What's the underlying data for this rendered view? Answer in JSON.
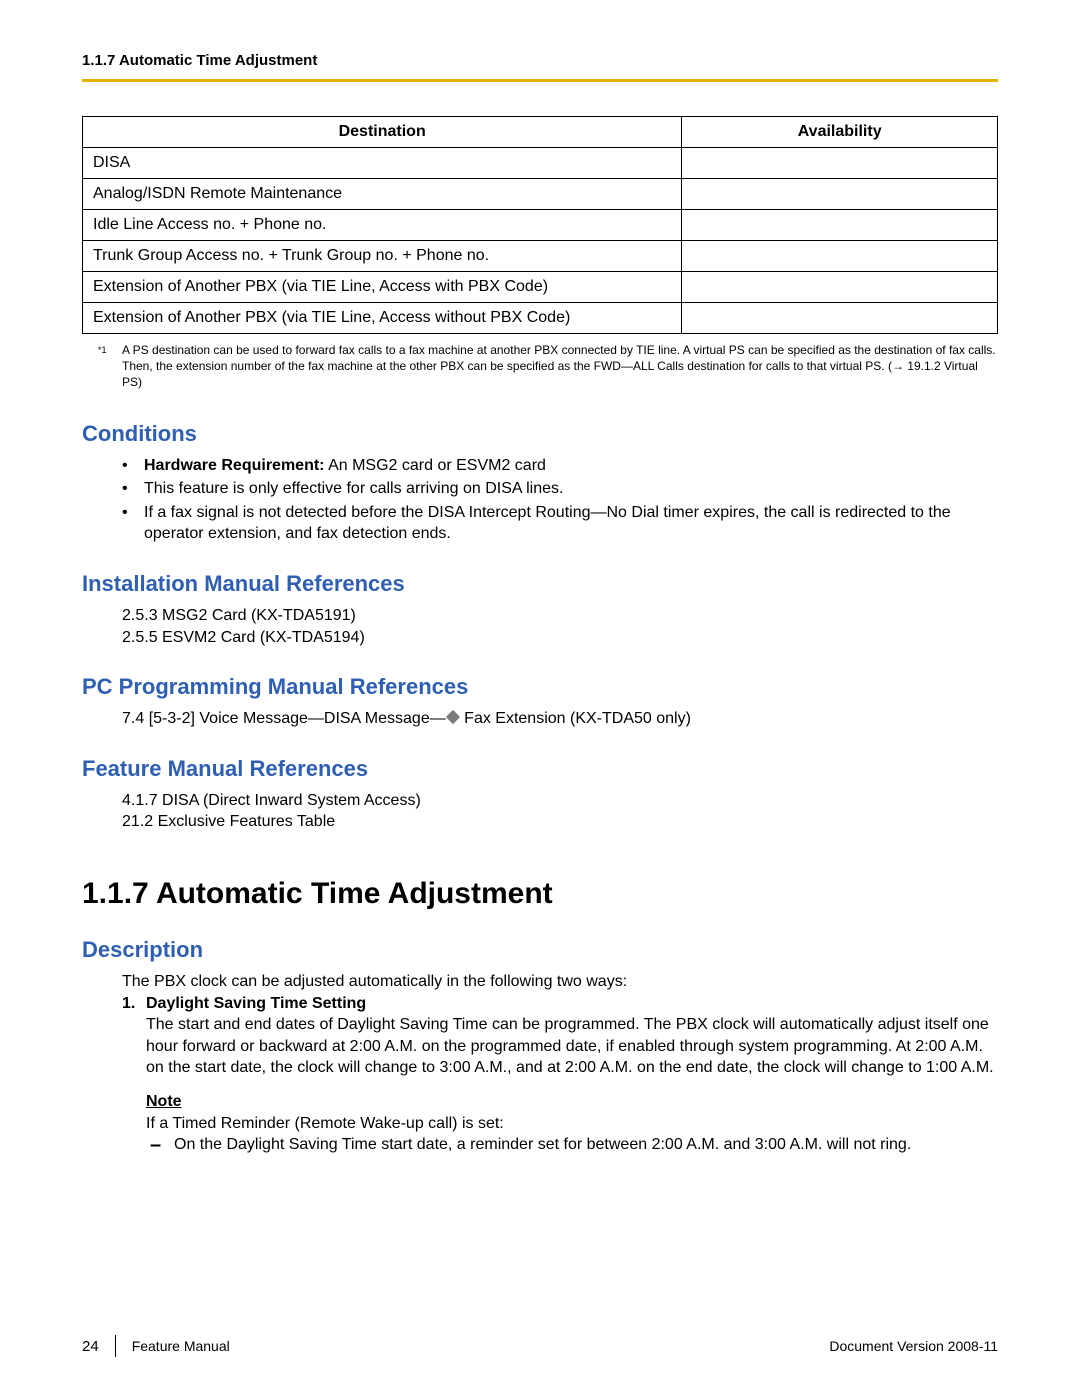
{
  "colors": {
    "accent": "#e0b400",
    "heading_blue": "#2e5fb3",
    "diamond": "#7a7a7a",
    "text": "#000000",
    "background": "#ffffff"
  },
  "header": {
    "title": "1.1.7 Automatic Time Adjustment"
  },
  "table": {
    "columns": [
      "Destination",
      "Availability"
    ],
    "rows": [
      [
        "DISA",
        ""
      ],
      [
        "Analog/ISDN Remote Maintenance",
        ""
      ],
      [
        "Idle Line Access no. + Phone no.",
        ""
      ],
      [
        "Trunk Group Access no. + Trunk Group no. + Phone no.",
        ""
      ],
      [
        "Extension of Another PBX (via TIE Line, Access with PBX Code)",
        ""
      ],
      [
        "Extension of Another PBX (via TIE Line, Access without PBX Code)",
        ""
      ]
    ]
  },
  "footnote": {
    "marker": "*1",
    "text": "A PS destination can be used to forward fax calls to a fax machine at another PBX connected by TIE line. A virtual PS can be specified as the destination of fax calls. Then, the extension number of the fax machine at the other PBX can be specified as the FWD—ALL Calls destination for calls to that virtual PS. (→ 19.1.2  Virtual PS)"
  },
  "conditions": {
    "heading": "Conditions",
    "items": [
      {
        "bold": "Hardware Requirement:",
        "rest": " An MSG2 card or ESVM2 card"
      },
      {
        "bold": "",
        "rest": "This feature is only effective for calls arriving on DISA lines."
      },
      {
        "bold": "",
        "rest": "If a fax signal is not detected before the DISA Intercept Routing—No Dial timer expires, the call is redirected to the operator extension, and fax detection ends."
      }
    ]
  },
  "install_refs": {
    "heading": "Installation Manual References",
    "lines": [
      "2.5.3  MSG2 Card (KX-TDA5191)",
      "2.5.5  ESVM2 Card (KX-TDA5194)"
    ]
  },
  "pc_refs": {
    "heading": "PC Programming Manual References",
    "line_pre": "7.4  [5-3-2] Voice Message—DISA Message—",
    "line_post": " Fax Extension (KX-TDA50 only)"
  },
  "feature_refs": {
    "heading": "Feature Manual References",
    "lines": [
      "4.1.7  DISA (Direct Inward System Access)",
      "21.2  Exclusive Features Table"
    ]
  },
  "main": {
    "heading": "1.1.7  Automatic Time Adjustment"
  },
  "description": {
    "heading": "Description",
    "intro": "The PBX clock can be adjusted automatically in the following two ways:",
    "num": "1.",
    "num_title": "Daylight Saving Time Setting",
    "num_body": "The start and end dates of Daylight Saving Time can be programmed. The PBX clock will automatically adjust itself one hour forward or backward at 2:00 A.M. on the programmed date, if enabled through system programming. At 2:00 A.M. on the start date, the clock will change to 3:00 A.M., and at 2:00 A.M. on the end date, the clock will change to 1:00 A.M.",
    "note_label": "Note",
    "note_intro": "If a Timed Reminder (Remote Wake-up call) is set:",
    "note_dash": "On the Daylight Saving Time start date, a reminder set for between 2:00 A.M. and 3:00 A.M. will not ring."
  },
  "footer": {
    "page": "24",
    "left": "Feature Manual",
    "right": "Document Version  2008-11"
  }
}
